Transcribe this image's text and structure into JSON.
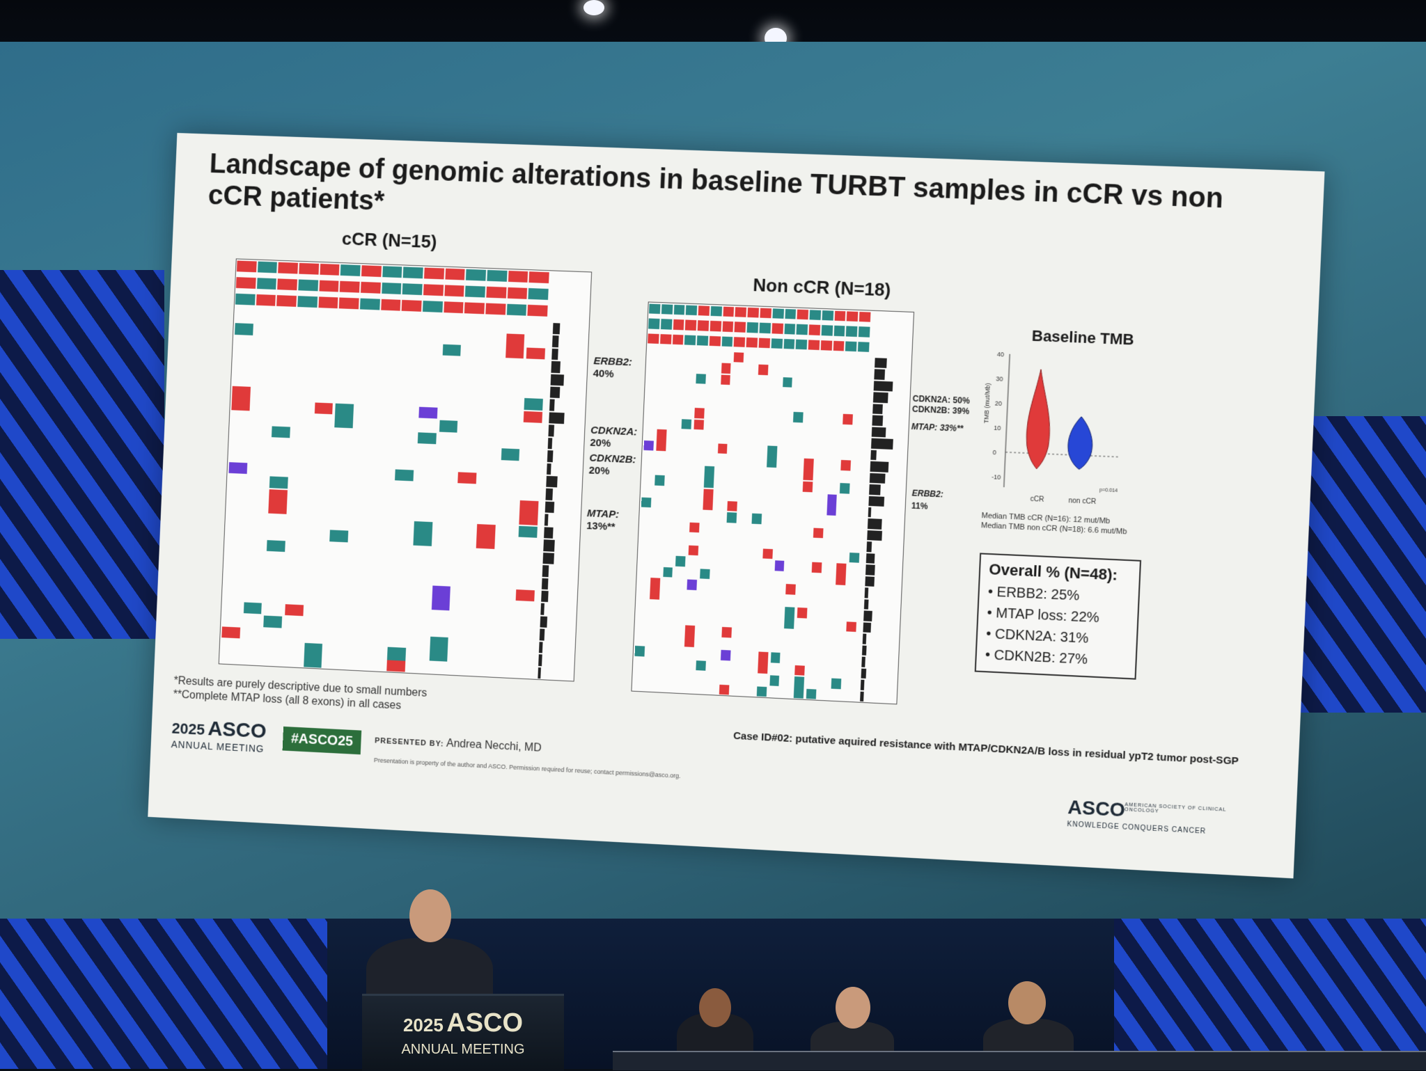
{
  "slide": {
    "title": "Landscape of genomic alterations in baseline TURBT samples in cCR vs non cCR patients*",
    "left_panel_title": "cCR (N=15)",
    "right_panel_title": "Non cCR (N=18)",
    "left_labels": [
      {
        "gene": "ERBB2:",
        "pct": "40%"
      },
      {
        "gene": "CDKN2A:",
        "pct": "20%"
      },
      {
        "gene": "CDKN2B:",
        "pct": "20%"
      },
      {
        "gene": "MTAP:",
        "pct": "13%**"
      }
    ],
    "right_labels": {
      "cdkn2a": "CDKN2A: 50%",
      "cdkn2b": "CDKN2B: 39%",
      "mtap": "MTAP: 33%**",
      "erbb2_gene": "ERBB2:",
      "erbb2_pct": "11%"
    },
    "violin": {
      "title": "Baseline TMB",
      "y_axis_label": "TMB (mut/Mb)",
      "y_ticks": [
        "40",
        "30",
        "20",
        "10",
        "0",
        "-10"
      ],
      "x_labels": [
        "cCR",
        "non cCR"
      ],
      "p_value": "p=0.014",
      "median_ccr": "Median TMB cCR (N=16): 12 mut/Mb",
      "median_non": "Median TMB non cCR (N=18): 6.6 mut/Mb",
      "colors": {
        "ccr": "#e03a3a",
        "non": "#2747d6"
      }
    },
    "overall": {
      "title": "Overall % (N=48):",
      "items": [
        "ERBB2: 25%",
        "MTAP loss: 22%",
        "CDKN2A: 31%",
        "CDKN2B: 27%"
      ]
    },
    "footnote1": "*Results are purely descriptive due to small numbers",
    "footnote2": "**Complete MTAP loss (all 8 exons) in all cases",
    "case_note": "Case ID#02: putative aquired resistance with MTAP/CDKN2A/B loss in residual ypT2 tumor post-SGP",
    "meeting_year": "2025",
    "meeting_brand": "ASCO",
    "meeting_sub": "ANNUAL MEETING",
    "hashtag": "#ASCO25",
    "presented_by_label": "PRESENTED BY:",
    "presenter": "Andrea Necchi, MD",
    "property_note": "Presentation is property of the author and ASCO. Permission required for reuse; contact permissions@asco.org.",
    "asco_logo": "ASCO",
    "asco_org": "AMERICAN SOCIETY OF CLINICAL ONCOLOGY",
    "asco_tagline": "KNOWLEDGE CONQUERS CANCER",
    "colors": {
      "teal": "#2a8a86",
      "red": "#e03a3a",
      "purple": "#6b3fd6"
    }
  },
  "podium": {
    "year": "2025",
    "brand": "ASCO",
    "sub": "ANNUAL MEETING"
  }
}
